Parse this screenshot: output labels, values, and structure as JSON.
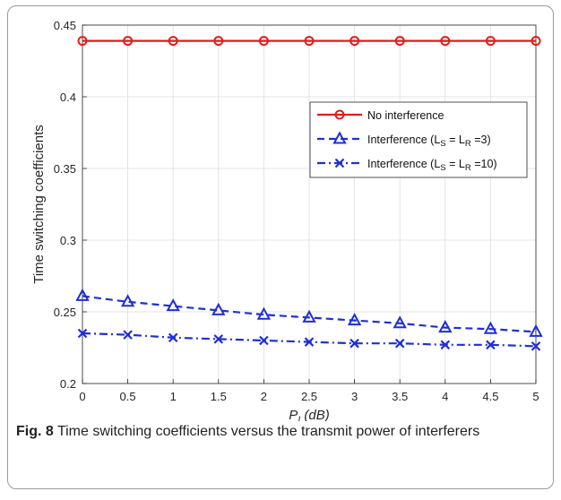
{
  "caption": {
    "label": "Fig. 8",
    "text": " Time switching coefficients versus the transmit power of interferers"
  },
  "chart_data": {
    "type": "line",
    "xlabel": "P",
    "xlabel_sub": "I",
    "xlabel_unit": "(dB)",
    "ylabel": "Time switching coefficients",
    "xlim": [
      0,
      5
    ],
    "ylim": [
      0.2,
      0.45
    ],
    "xticks": [
      "0",
      "0.5",
      "1",
      "1.5",
      "2",
      "2.5",
      "3",
      "3.5",
      "4",
      "4.5",
      "5"
    ],
    "yticks": [
      "0.2",
      "0.25",
      "0.3",
      "0.35",
      "0.4",
      "0.45"
    ],
    "grid": true,
    "legend_position": "upper-right",
    "x": [
      0,
      0.5,
      1,
      1.5,
      2,
      2.5,
      3,
      3.5,
      4,
      4.5,
      5
    ],
    "series": [
      {
        "name": "No interference",
        "legend_parts": [
          "No interference"
        ],
        "color": "#e31a1c",
        "marker": "circle",
        "dash": "solid",
        "values": [
          0.439,
          0.439,
          0.439,
          0.439,
          0.439,
          0.439,
          0.439,
          0.439,
          0.439,
          0.439,
          0.439
        ]
      },
      {
        "name": "Interference (LS = LR =3)",
        "legend_parts": [
          "Interference (L",
          "S",
          " = L",
          "R",
          " =3)"
        ],
        "color": "#1f2fd6",
        "marker": "triangle",
        "dash": "dashed",
        "values": [
          0.261,
          0.257,
          0.254,
          0.251,
          0.248,
          0.246,
          0.244,
          0.242,
          0.239,
          0.238,
          0.236
        ]
      },
      {
        "name": "Interference (LS = LR =10)",
        "legend_parts": [
          "Interference (L",
          "S",
          " = L",
          "R",
          " =10)"
        ],
        "color": "#1f2fd6",
        "marker": "x",
        "dash": "dashdot",
        "values": [
          0.235,
          0.234,
          0.232,
          0.231,
          0.23,
          0.229,
          0.228,
          0.228,
          0.227,
          0.227,
          0.226
        ]
      }
    ]
  }
}
